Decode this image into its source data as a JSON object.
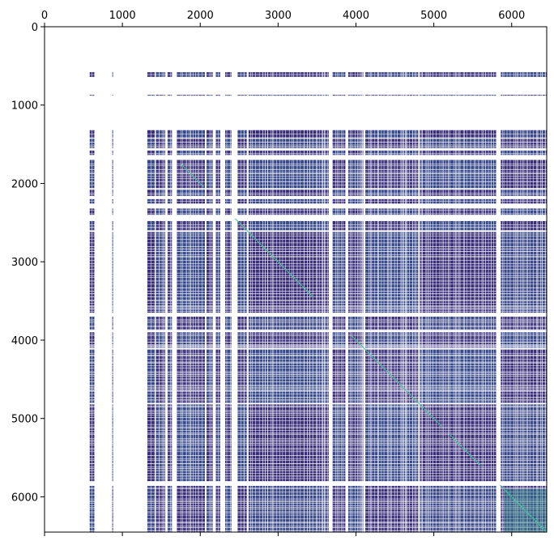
{
  "chart_data": {
    "type": "heatmap",
    "title": "",
    "xlabel": "",
    "ylabel": "",
    "xlim": [
      0,
      6450
    ],
    "ylim": [
      6450,
      0
    ],
    "x_ticks": [
      0,
      1000,
      2000,
      3000,
      4000,
      5000,
      6000
    ],
    "x_tick_labels": [
      "0",
      "1000",
      "2000",
      "3000",
      "4000",
      "5000",
      "6000"
    ],
    "y_ticks": [
      0,
      1000,
      2000,
      3000,
      4000,
      5000,
      6000
    ],
    "y_tick_labels": [
      "0",
      "1000",
      "2000",
      "3000",
      "4000",
      "5000",
      "6000"
    ],
    "x_axis_position": "top",
    "colors": {
      "low": "#3b2f7a",
      "mid": "#3d4a8a",
      "high": "#2c8a8a",
      "diagonal": "#3fc59a",
      "empty": "#ffffff"
    },
    "sparse_index_bands": [
      [
        580,
        640
      ],
      [
        870,
        880
      ],
      [
        1320,
        1420
      ],
      [
        1430,
        1550
      ],
      [
        1580,
        1640
      ],
      [
        1700,
        2060
      ],
      [
        2080,
        2160
      ],
      [
        2200,
        2260
      ],
      [
        2320,
        2400
      ],
      [
        2480,
        2600
      ],
      [
        2620,
        3650
      ],
      [
        3700,
        3870
      ],
      [
        3900,
        4100
      ],
      [
        4120,
        4800
      ],
      [
        4820,
        5800
      ],
      [
        5860,
        6450
      ]
    ],
    "diagonal_segments": [
      [
        1750,
        2050
      ],
      [
        2450,
        3450
      ],
      [
        3950,
        5100
      ],
      [
        5200,
        5600
      ],
      [
        5850,
        6450
      ]
    ]
  }
}
